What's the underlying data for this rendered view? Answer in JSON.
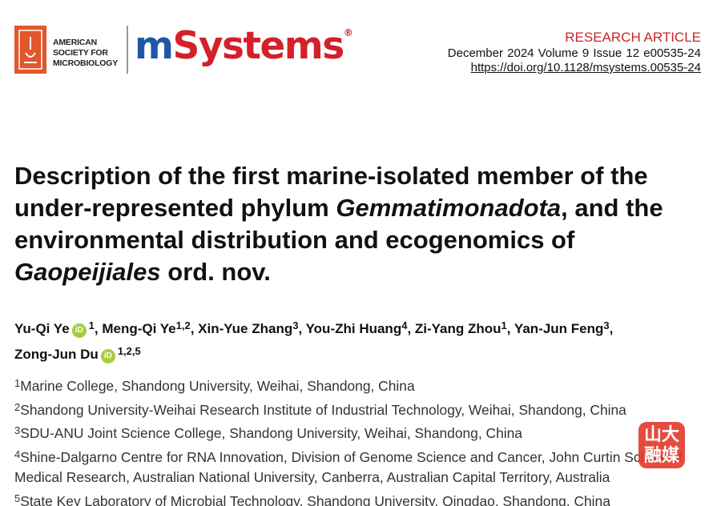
{
  "header": {
    "society_lines": [
      "AMERICAN",
      "SOCIETY FOR",
      "MICROBIOLOGY"
    ],
    "journal_prefix": "m",
    "journal_suffix": "Systems",
    "registered_mark": "®",
    "article_type": "RESEARCH ARTICLE",
    "issue": "December 2024  Volume 9  Issue 12  e00535-24",
    "doi": "https://doi.org/10.1128/msystems.00535-24"
  },
  "title": {
    "lines": [
      [
        {
          "text": "Description of the first marine-isolated member of the",
          "italic": false
        }
      ],
      [
        {
          "text": "under-represented phylum ",
          "italic": false
        },
        {
          "text": "Gemmatimonadota",
          "italic": true
        },
        {
          "text": ", and the",
          "italic": false
        }
      ],
      [
        {
          "text": "environmental distribution and ecogenomics of",
          "italic": false
        }
      ],
      [
        {
          "text": "Gaopeijiales",
          "italic": true
        },
        {
          "text": " ord. nov.",
          "italic": false
        }
      ]
    ]
  },
  "authors": {
    "orcid_label": "iD",
    "list": [
      {
        "name": "Yu-Qi Ye",
        "orcid": true,
        "affiliations": "1"
      },
      {
        "name": "Meng-Qi Ye",
        "orcid": false,
        "affiliations": "1,2"
      },
      {
        "name": "Xin-Yue Zhang",
        "orcid": false,
        "affiliations": "3"
      },
      {
        "name": "You-Zhi Huang",
        "orcid": false,
        "affiliations": "4"
      },
      {
        "name": "Zi-Yang Zhou",
        "orcid": false,
        "affiliations": "1"
      },
      {
        "name": "Yan-Jun Feng",
        "orcid": false,
        "affiliations": "3"
      },
      {
        "name": "Zong-Jun Du",
        "orcid": true,
        "affiliations": "1,2,5"
      }
    ]
  },
  "affiliations": [
    {
      "number": "1",
      "text": "Marine College, Shandong University, Weihai, Shandong, China"
    },
    {
      "number": "2",
      "text": "Shandong University-Weihai Research Institute of Industrial Technology, Weihai, Shandong, China"
    },
    {
      "number": "3",
      "text": "SDU-ANU Joint Science College, Shandong University, Weihai, Shandong, China"
    },
    {
      "number": "4",
      "text": "Shine-Dalgarno Centre for RNA Innovation, Division of Genome Science and Cancer, John Curtin School of Medical Research, Australian National University, Canberra, Australian Capital Territory, Australia"
    },
    {
      "number": "5",
      "text": "State Key Laboratory of Microbial Technology, Shandong University, Qingdao, Shandong, China"
    }
  ],
  "watermark": {
    "lines": [
      "山大",
      "融媒"
    ]
  }
}
